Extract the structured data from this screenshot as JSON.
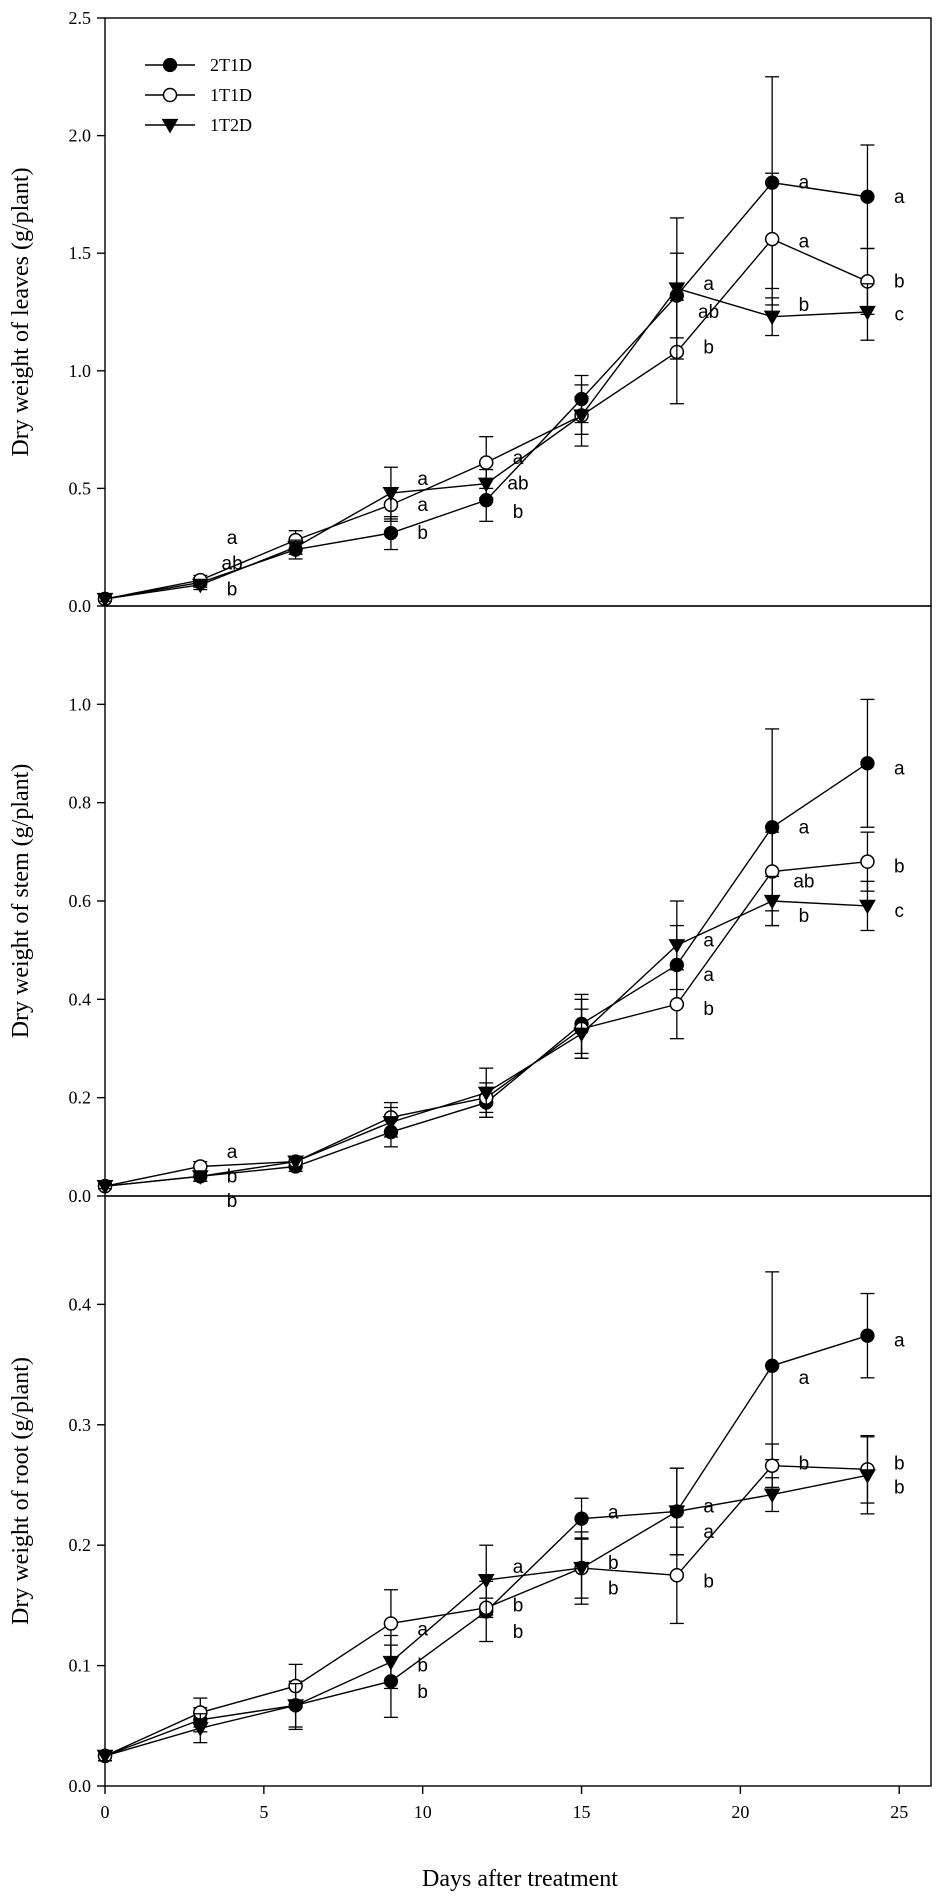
{
  "chart_data": {
    "type": "line",
    "xlabel": "Days after treatment",
    "xlim": [
      0,
      26
    ],
    "x_ticks": [
      0,
      5,
      10,
      15,
      20,
      25
    ],
    "x": [
      0,
      3,
      6,
      9,
      12,
      15,
      18,
      21,
      24
    ],
    "legend": {
      "placement": "top-left",
      "entries": [
        {
          "name": "2T1D",
          "marker": "filled-circle"
        },
        {
          "name": "1T1D",
          "marker": "open-circle"
        },
        {
          "name": "1T2D",
          "marker": "filled-triangle-down"
        }
      ]
    },
    "panels": [
      {
        "ylabel": "Dry weight of leaves (g/plant)",
        "ylim": [
          0,
          2.5
        ],
        "y_ticks": [
          "0.0",
          "0.5",
          "1.0",
          "1.5",
          "2.0",
          "2.5"
        ],
        "series": [
          {
            "name": "2T1D",
            "values": [
              0.03,
              0.1,
              0.24,
              0.31,
              0.45,
              0.88,
              1.32,
              1.8,
              1.74
            ],
            "errors": [
              0.01,
              0.02,
              0.04,
              0.07,
              0.09,
              0.1,
              0.18,
              0.45,
              0.22
            ]
          },
          {
            "name": "1T1D",
            "values": [
              0.03,
              0.11,
              0.28,
              0.43,
              0.61,
              0.81,
              1.08,
              1.56,
              1.38
            ],
            "errors": [
              0.01,
              0.02,
              0.04,
              0.07,
              0.11,
              0.08,
              0.22,
              0.28,
              0.14
            ]
          },
          {
            "name": "1T2D",
            "values": [
              0.03,
              0.09,
              0.25,
              0.48,
              0.52,
              0.81,
              1.35,
              1.23,
              1.25
            ],
            "errors": [
              0.01,
              0.02,
              0.03,
              0.11,
              0.06,
              0.13,
              0.3,
              0.08,
              0.12
            ]
          }
        ],
        "annotations": [
          {
            "x": 4,
            "y": 0.29,
            "text": "a"
          },
          {
            "x": 4,
            "y": 0.18,
            "text": "ab"
          },
          {
            "x": 4,
            "y": 0.07,
            "text": "b"
          },
          {
            "x": 10,
            "y": 0.54,
            "text": "a"
          },
          {
            "x": 10,
            "y": 0.43,
            "text": "a"
          },
          {
            "x": 10,
            "y": 0.31,
            "text": "b"
          },
          {
            "x": 13,
            "y": 0.63,
            "text": "a"
          },
          {
            "x": 13,
            "y": 0.52,
            "text": "ab"
          },
          {
            "x": 13,
            "y": 0.4,
            "text": "b"
          },
          {
            "x": 19,
            "y": 1.37,
            "text": "a"
          },
          {
            "x": 19,
            "y": 1.25,
            "text": "ab"
          },
          {
            "x": 19,
            "y": 1.1,
            "text": "b"
          },
          {
            "x": 22,
            "y": 1.8,
            "text": "a"
          },
          {
            "x": 22,
            "y": 1.55,
            "text": "a"
          },
          {
            "x": 22,
            "y": 1.28,
            "text": "b"
          },
          {
            "x": 25,
            "y": 1.74,
            "text": "a"
          },
          {
            "x": 25,
            "y": 1.38,
            "text": "b"
          },
          {
            "x": 25,
            "y": 1.24,
            "text": "c"
          }
        ]
      },
      {
        "ylabel": "Dry weight of stem (g/plant)",
        "ylim": [
          0,
          1.2
        ],
        "y_ticks": [
          "0.0",
          "0.2",
          "0.4",
          "0.6",
          "0.8",
          "1.0"
        ],
        "series": [
          {
            "name": "2T1D",
            "values": [
              0.02,
              0.04,
              0.06,
              0.13,
              0.19,
              0.35,
              0.47,
              0.75,
              0.88
            ],
            "errors": [
              0.005,
              0.01,
              0.01,
              0.03,
              0.03,
              0.06,
              0.08,
              0.2,
              0.13
            ]
          },
          {
            "name": "1T1D",
            "values": [
              0.02,
              0.06,
              0.07,
              0.16,
              0.2,
              0.34,
              0.39,
              0.66,
              0.68
            ],
            "errors": [
              0.005,
              0.01,
              0.01,
              0.03,
              0.03,
              0.06,
              0.07,
              0.08,
              0.06
            ]
          },
          {
            "name": "1T2D",
            "values": [
              0.02,
              0.04,
              0.07,
              0.15,
              0.21,
              0.33,
              0.51,
              0.6,
              0.59
            ],
            "errors": [
              0.005,
              0.01,
              0.01,
              0.03,
              0.05,
              0.05,
              0.09,
              0.05,
              0.05
            ]
          }
        ],
        "annotations": [
          {
            "x": 4,
            "y": 0.09,
            "text": "a"
          },
          {
            "x": 4,
            "y": 0.04,
            "text": "b"
          },
          {
            "x": 4,
            "y": -0.01,
            "text": "b"
          },
          {
            "x": 19,
            "y": 0.52,
            "text": "a"
          },
          {
            "x": 19,
            "y": 0.45,
            "text": "a"
          },
          {
            "x": 19,
            "y": 0.38,
            "text": "b"
          },
          {
            "x": 22,
            "y": 0.75,
            "text": "a"
          },
          {
            "x": 22,
            "y": 0.64,
            "text": "ab"
          },
          {
            "x": 22,
            "y": 0.57,
            "text": "b"
          },
          {
            "x": 25,
            "y": 0.87,
            "text": "a"
          },
          {
            "x": 25,
            "y": 0.67,
            "text": "b"
          },
          {
            "x": 25,
            "y": 0.58,
            "text": "c"
          }
        ]
      },
      {
        "ylabel": "Dry weight of root (g/plant)",
        "ylim": [
          0,
          0.49
        ],
        "y_ticks": [
          "0.0",
          "0.1",
          "0.2",
          "0.3",
          "0.4"
        ],
        "series": [
          {
            "name": "2T1D",
            "values": [
              0.025,
              0.055,
              0.067,
              0.087,
              0.145,
              0.222,
              0.228,
              0.349,
              0.374
            ],
            "errors": [
              0.004,
              0.01,
              0.02,
              0.03,
              0.025,
              0.017,
              0.036,
              0.078,
              0.035
            ]
          },
          {
            "name": "1T1D",
            "values": [
              0.025,
              0.061,
              0.083,
              0.135,
              0.148,
              0.181,
              0.175,
              0.266,
              0.263
            ],
            "errors": [
              0.004,
              0.012,
              0.018,
              0.028,
              0.008,
              0.025,
              0.04,
              0.018,
              0.028
            ]
          },
          {
            "name": "1T2D",
            "values": [
              0.025,
              0.048,
              0.067,
              0.103,
              0.171,
              0.181,
              0.228,
              0.242,
              0.258
            ],
            "errors": [
              0.004,
              0.012,
              0.018,
              0.022,
              0.029,
              0.03,
              0.036,
              0.014,
              0.032
            ]
          }
        ],
        "annotations": [
          {
            "x": 10,
            "y": 0.13,
            "text": "a"
          },
          {
            "x": 10,
            "y": 0.1,
            "text": "b"
          },
          {
            "x": 10,
            "y": 0.078,
            "text": "b"
          },
          {
            "x": 13,
            "y": 0.182,
            "text": "a"
          },
          {
            "x": 13,
            "y": 0.15,
            "text": "b"
          },
          {
            "x": 13,
            "y": 0.128,
            "text": "b"
          },
          {
            "x": 16,
            "y": 0.227,
            "text": "a"
          },
          {
            "x": 16,
            "y": 0.185,
            "text": "b"
          },
          {
            "x": 16,
            "y": 0.164,
            "text": "b"
          },
          {
            "x": 19,
            "y": 0.232,
            "text": "a"
          },
          {
            "x": 19,
            "y": 0.211,
            "text": "a"
          },
          {
            "x": 19,
            "y": 0.17,
            "text": "b"
          },
          {
            "x": 22,
            "y": 0.339,
            "text": "a"
          },
          {
            "x": 22,
            "y": 0.268,
            "text": "b"
          },
          {
            "x": 25,
            "y": 0.37,
            "text": "a"
          },
          {
            "x": 25,
            "y": 0.268,
            "text": "b"
          },
          {
            "x": 25,
            "y": 0.248,
            "text": "b"
          }
        ]
      }
    ]
  }
}
